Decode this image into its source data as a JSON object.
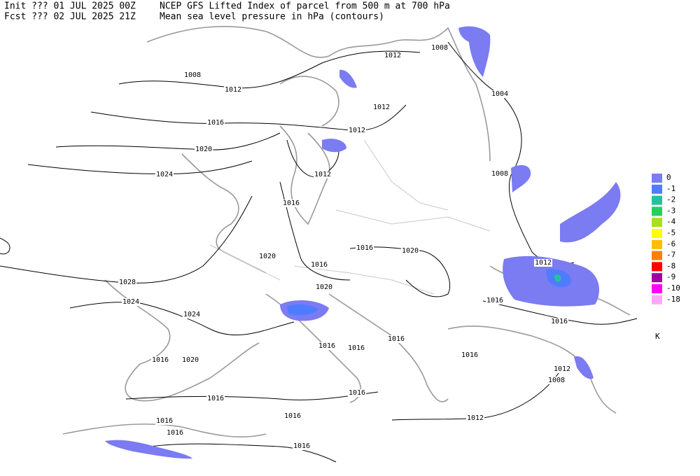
{
  "header": {
    "init": "Init  ??? 01 JUL 2025 00Z",
    "fcst": "Fcst ??? 02 JUL 2025 21Z",
    "title": "NCEP GFS Lifted Index of parcel from 500 m at 700 hPa",
    "subtitle": "Mean sea level pressure in hPa (contours)"
  },
  "contour_labels": [
    "1008",
    "1012",
    "1012",
    "1008",
    "1012",
    "1012",
    "1004",
    "1016",
    "1020",
    "1024",
    "1012",
    "1008",
    "1016",
    "1016",
    "1020",
    "1020",
    "1016",
    "1012",
    "1028",
    "1020",
    "1024",
    "1016",
    "1024",
    "1016",
    "1016",
    "1020",
    "1016",
    "1016",
    "1016",
    "1016",
    "1012",
    "1008",
    "1016",
    "1016",
    "1016",
    "1016",
    "1012",
    "1016",
    "1016"
  ],
  "legend": {
    "unit": "K",
    "items": [
      {
        "label": "0",
        "color": "#7b7bf2"
      },
      {
        "label": "-1",
        "color": "#4f7cff"
      },
      {
        "label": "-2",
        "color": "#22c39a"
      },
      {
        "label": "-3",
        "color": "#22d060"
      },
      {
        "label": "-4",
        "color": "#a8e01c"
      },
      {
        "label": "-5",
        "color": "#ffff00"
      },
      {
        "label": "-6",
        "color": "#ffc000"
      },
      {
        "label": "-7",
        "color": "#ff8000"
      },
      {
        "label": "-8",
        "color": "#ff0000"
      },
      {
        "label": "-9",
        "color": "#a000a0"
      },
      {
        "label": "-10",
        "color": "#ff00ff"
      },
      {
        "label": "-18",
        "color": "#ffa8ff"
      }
    ]
  }
}
